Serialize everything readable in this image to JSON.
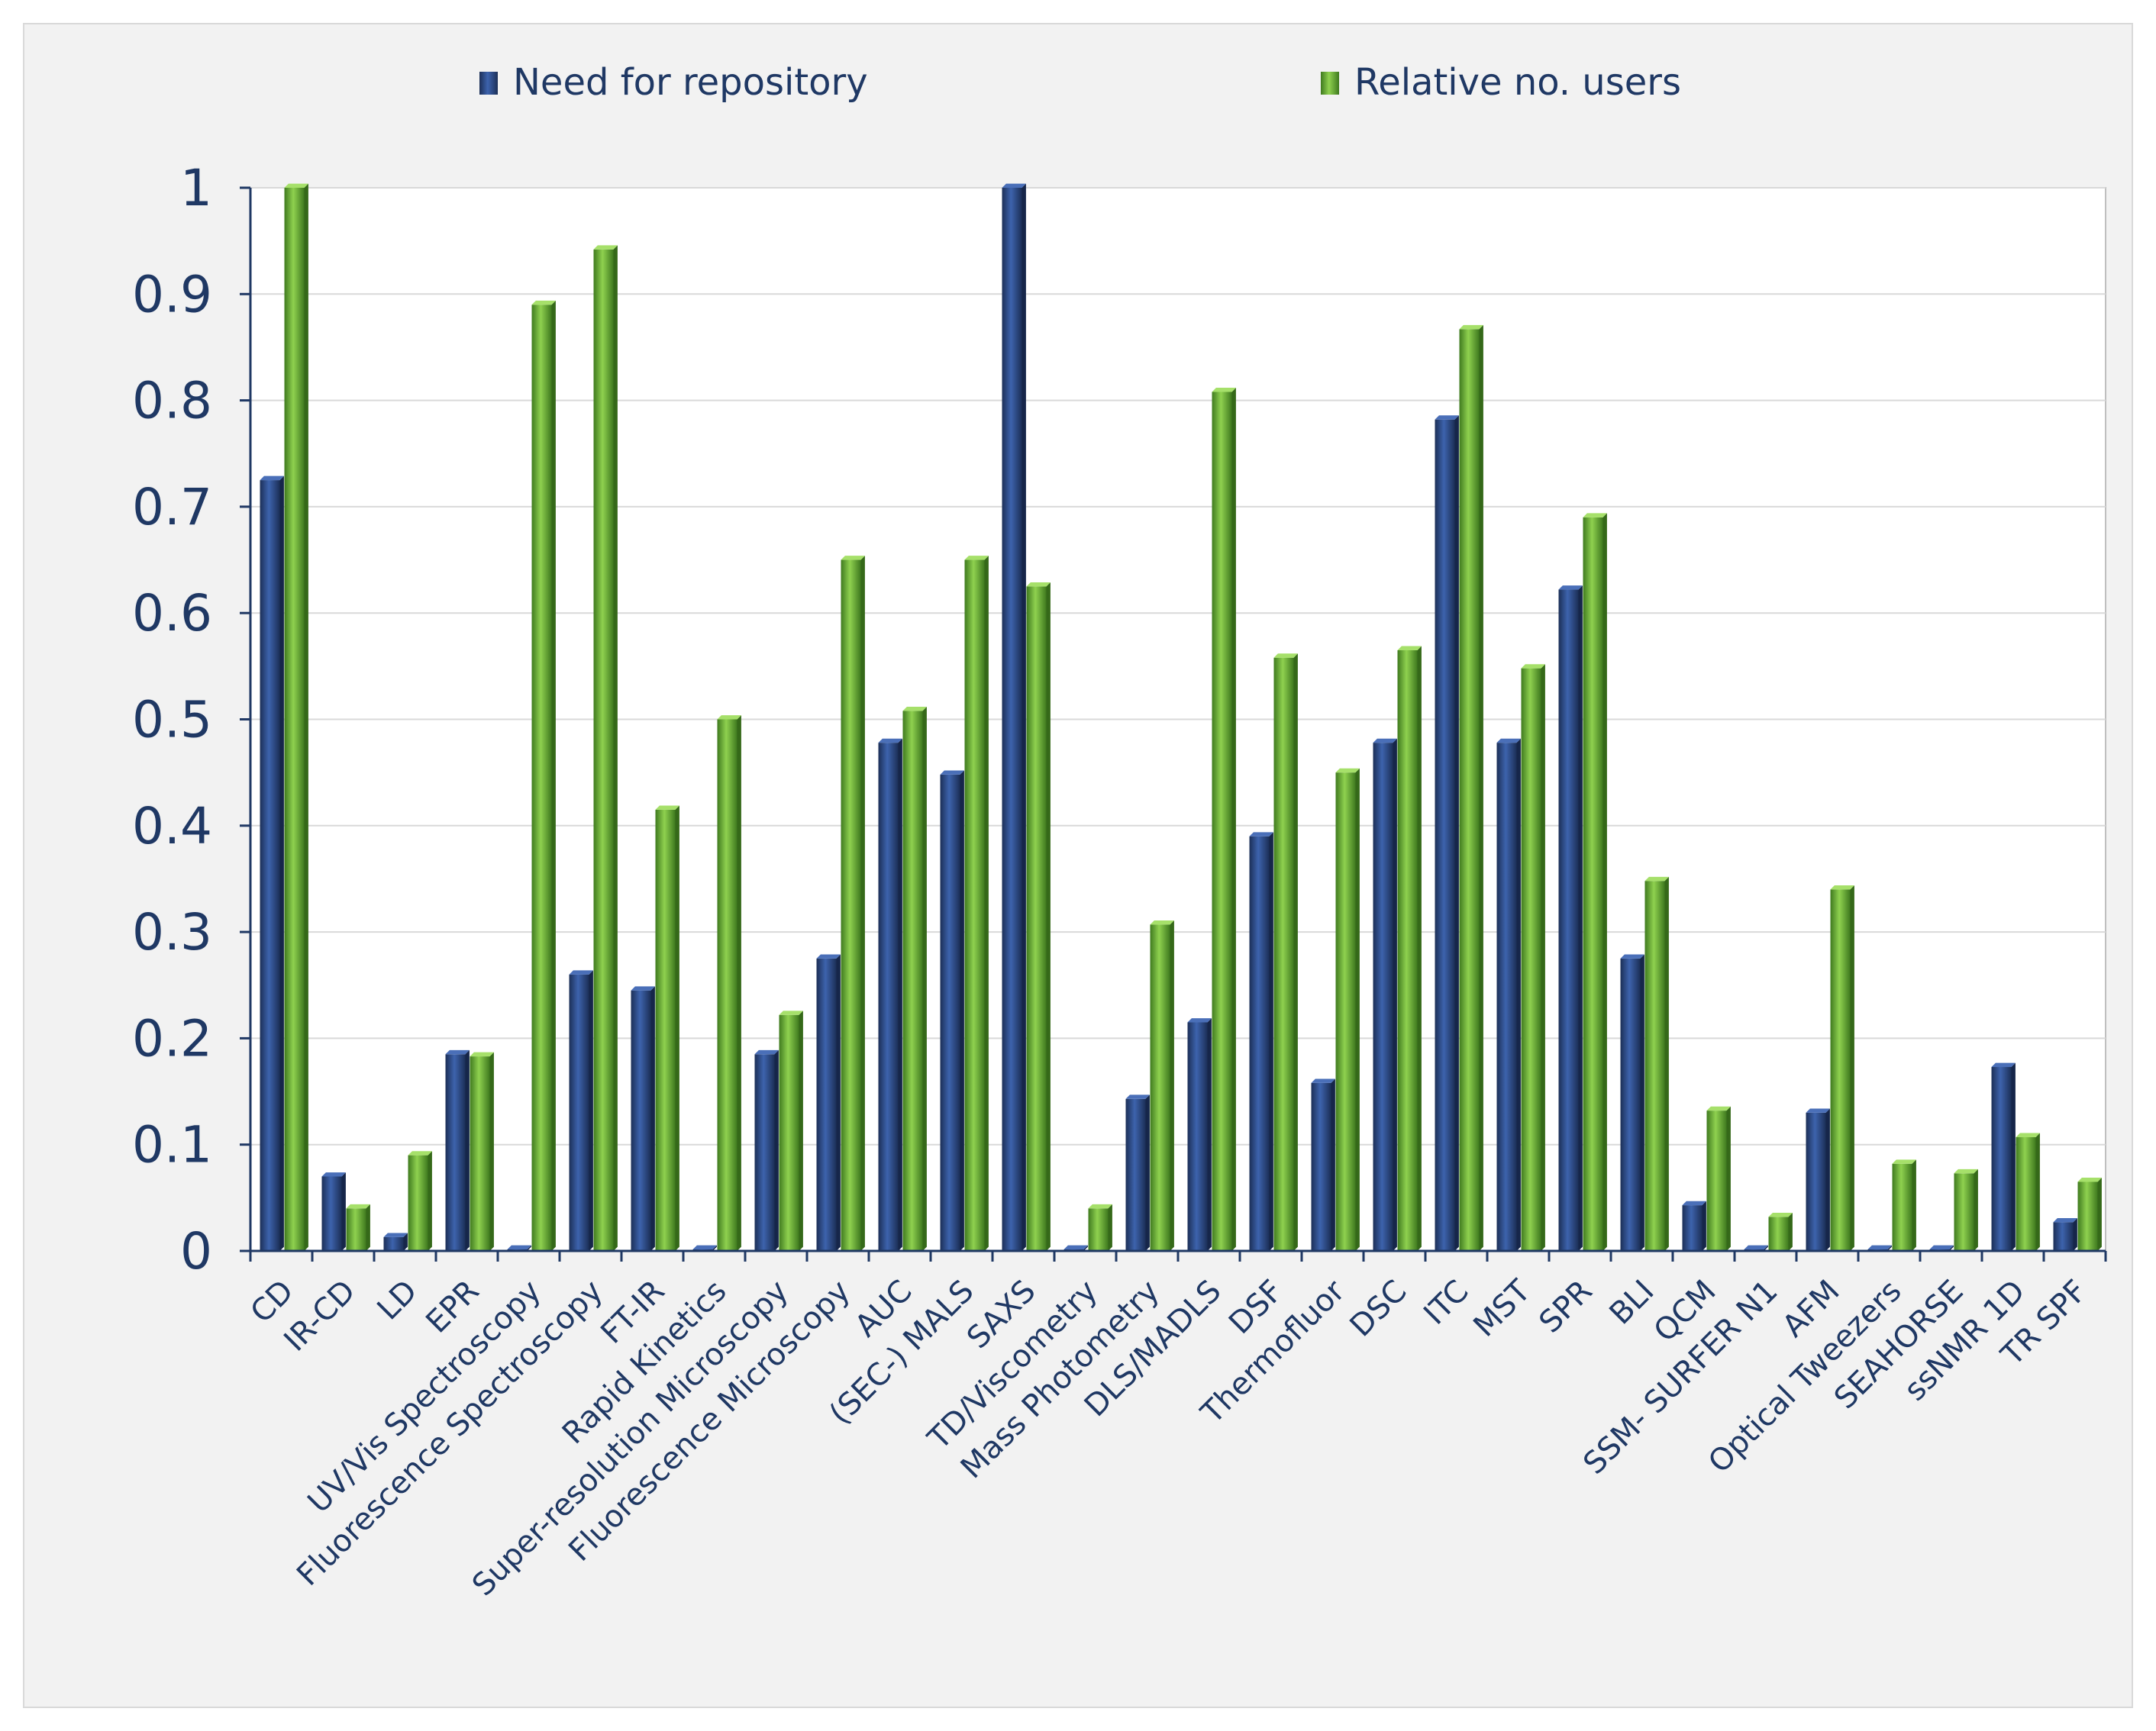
{
  "chart_data": {
    "type": "bar",
    "categories": [
      "CD",
      "IR-CD",
      "LD",
      "EPR",
      "UV/Vis Spectroscopy",
      "Fluorescence Spectroscopy",
      "FT-IR",
      "Rapid Kinetics",
      "Super-resolution Microscopy",
      "Fluorescence Microscopy",
      "AUC",
      "(SEC-) MALS",
      "SAXS",
      "TD/Viscometry",
      "Mass Photometry",
      "DLS/MADLS",
      "DSF",
      "Thermofluor",
      "DSC",
      "ITC",
      "MST",
      "SPR",
      "BLI",
      "QCM",
      "SSM- SURFER N1",
      "AFM",
      "Optical Tweezers",
      "SEAHORSE",
      "ssNMR 1D",
      "TR SPF"
    ],
    "series": [
      {
        "name": "Need for repository",
        "color": "#2e4d8a",
        "values": [
          0.725,
          0.07,
          0.013,
          0.185,
          0,
          0.26,
          0.245,
          0,
          0.185,
          0.275,
          0.478,
          0.448,
          1.0,
          0,
          0.143,
          0.215,
          0.39,
          0.158,
          0.478,
          0.782,
          0.478,
          0.622,
          0.275,
          0.043,
          0,
          0.13,
          0,
          0,
          0.173,
          0.027
        ]
      },
      {
        "name": "Relative no. users",
        "color": "#6cb33f",
        "values": [
          1.0,
          0.04,
          0.09,
          0.183,
          0.89,
          0.942,
          0.415,
          0.5,
          0.222,
          0.65,
          0.508,
          0.65,
          0.625,
          0.04,
          0.307,
          0.808,
          0.558,
          0.45,
          0.565,
          0.867,
          0.548,
          0.69,
          0.348,
          0.132,
          0.032,
          0.34,
          0.082,
          0.073,
          0.107,
          0.065
        ]
      }
    ],
    "yticks": [
      "0",
      "0.1",
      "0.2",
      "0.3",
      "0.4",
      "0.5",
      "0.6",
      "0.7",
      "0.8",
      "0.9",
      "1"
    ],
    "ylim": [
      0,
      1
    ],
    "grid": true,
    "legend_position": "top"
  }
}
